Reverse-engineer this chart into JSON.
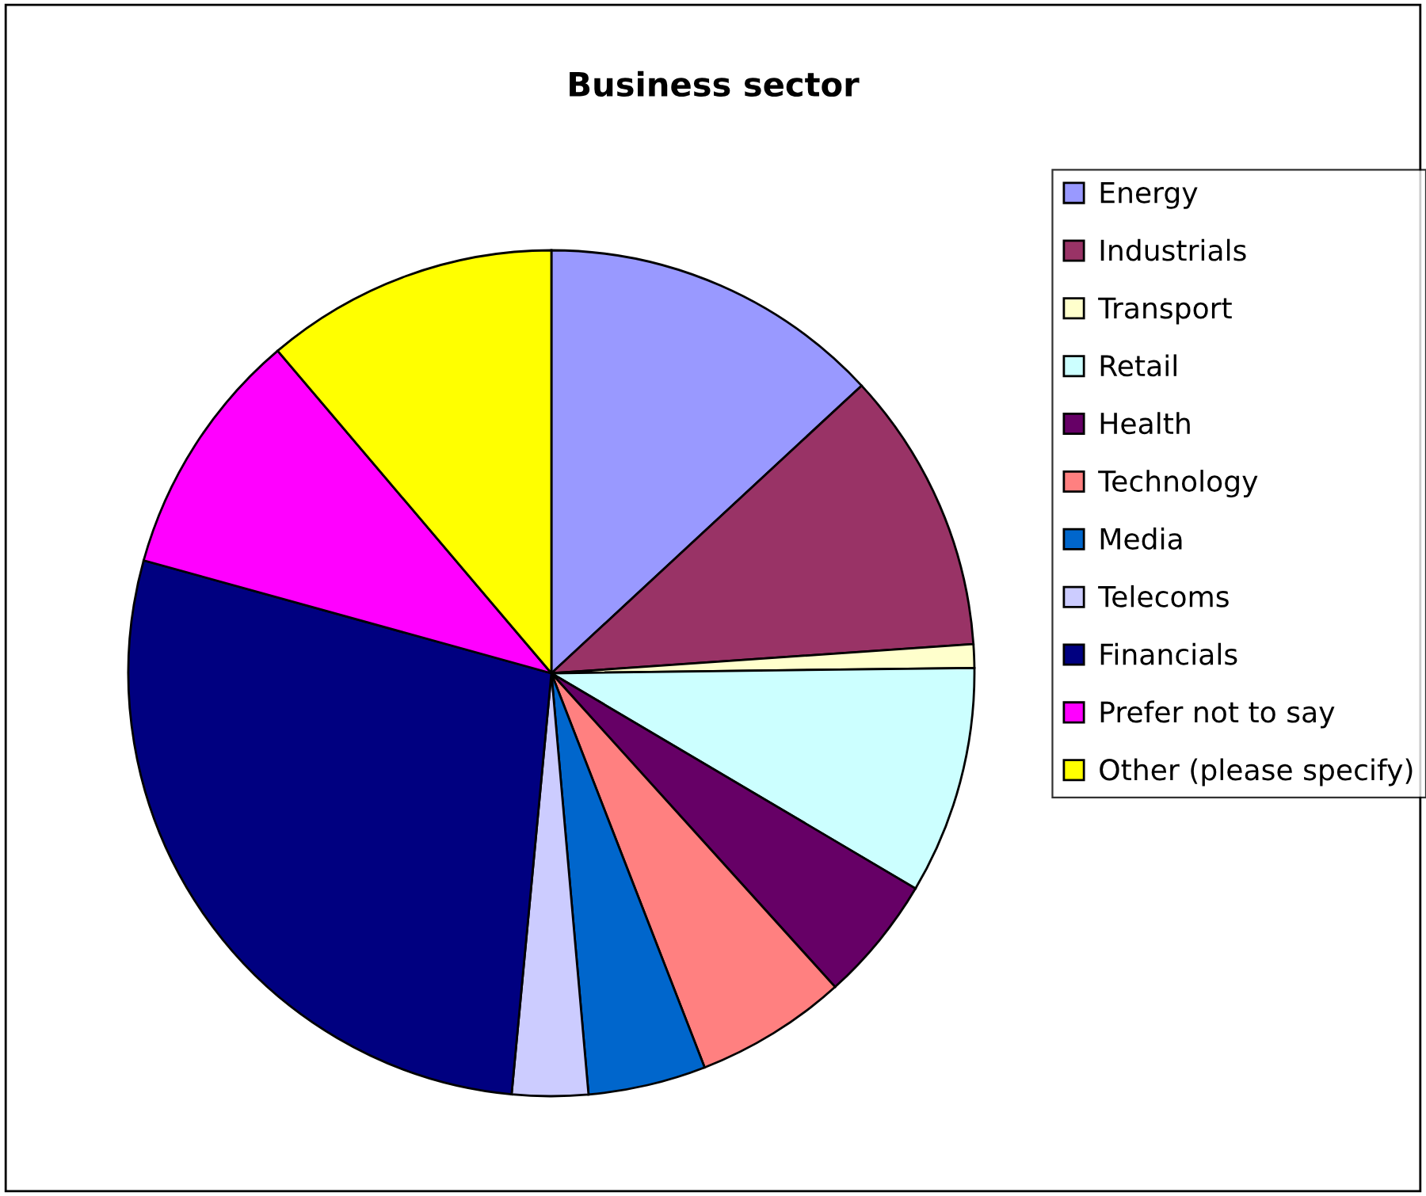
{
  "chart_data": {
    "type": "pie",
    "title": "Business sector",
    "categories": [
      "Energy",
      "Industrials",
      "Transport",
      "Retail",
      "Health",
      "Technology",
      "Media",
      "Telecoms",
      "Financials",
      "Prefer not to say",
      "Other (please specify)"
    ],
    "values": [
      13.1,
      10.8,
      0.9,
      8.7,
      4.8,
      5.8,
      4.5,
      2.9,
      27.8,
      9.5,
      11.2
    ],
    "colors": [
      "#9999ff",
      "#993366",
      "#ffffcc",
      "#ccffff",
      "#660066",
      "#ff8080",
      "#0066cc",
      "#ccccff",
      "#000080",
      "#ff00ff",
      "#ffff00"
    ],
    "legend": "right"
  }
}
